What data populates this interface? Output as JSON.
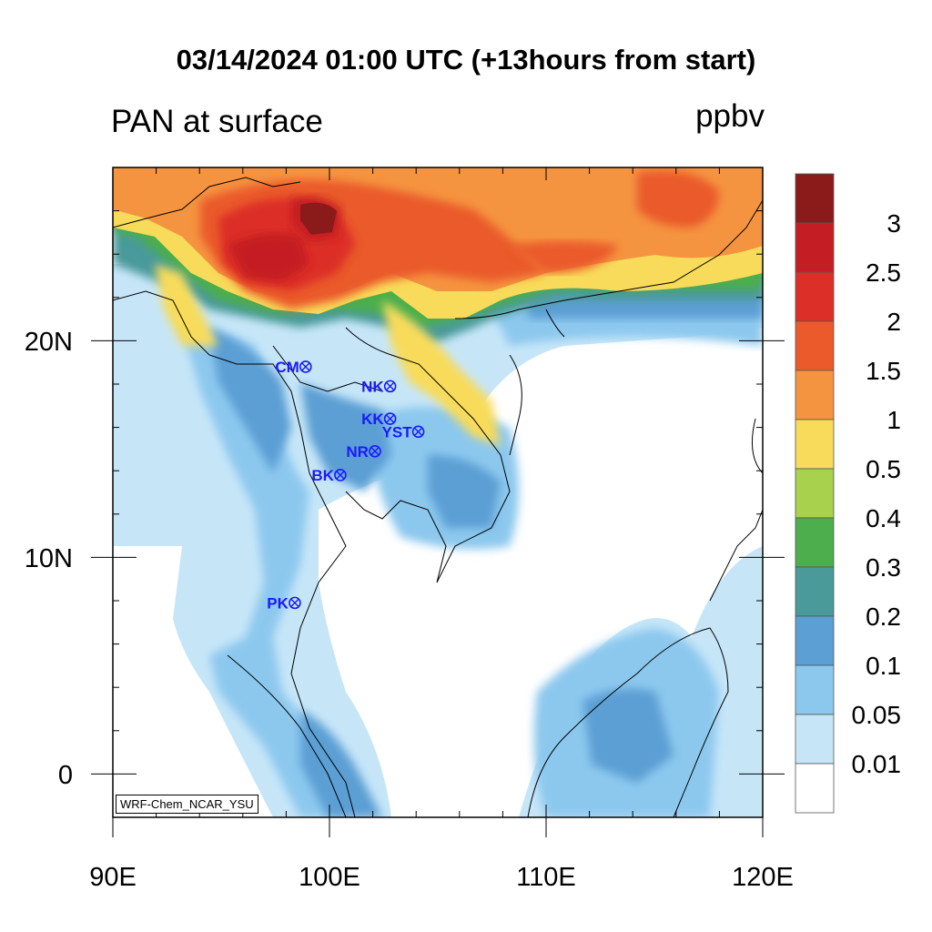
{
  "header": {
    "title": "03/14/2024 01:00 UTC (+13hours from start)",
    "variable": "PAN at surface",
    "units": "ppbv"
  },
  "axes": {
    "x_ticks": [
      "90E",
      "100E",
      "110E",
      "120E"
    ],
    "y_ticks": [
      "20N",
      "10N",
      "0"
    ],
    "lon_range": [
      90,
      120
    ],
    "lat_range": [
      -2,
      28
    ]
  },
  "colorbar": {
    "labels": [
      "3",
      "2.5",
      "2",
      "1.5",
      "1",
      "0.5",
      "0.4",
      "0.3",
      "0.2",
      "0.1",
      "0.05",
      "0.01"
    ],
    "colors": [
      "#8b1a1a",
      "#c41e24",
      "#dc2f28",
      "#ea5a2a",
      "#f59440",
      "#f8db5a",
      "#a8d14e",
      "#4cae4c",
      "#4a9a9a",
      "#5c9fd4",
      "#8cc8ee",
      "#c6e6f8",
      "#ffffff"
    ]
  },
  "stations": [
    {
      "label": "CM",
      "lon": 98.9,
      "lat": 18.8
    },
    {
      "label": "NK",
      "lon": 102.8,
      "lat": 17.9
    },
    {
      "label": "KK",
      "lon": 102.8,
      "lat": 16.4
    },
    {
      "label": "YST",
      "lon": 104.1,
      "lat": 15.8
    },
    {
      "label": "NR",
      "lon": 102.1,
      "lat": 14.9
    },
    {
      "label": "BK",
      "lon": 100.5,
      "lat": 13.8
    },
    {
      "label": "PK",
      "lon": 98.4,
      "lat": 7.9
    }
  ],
  "credit": "WRF-Chem_NCAR_YSU"
}
